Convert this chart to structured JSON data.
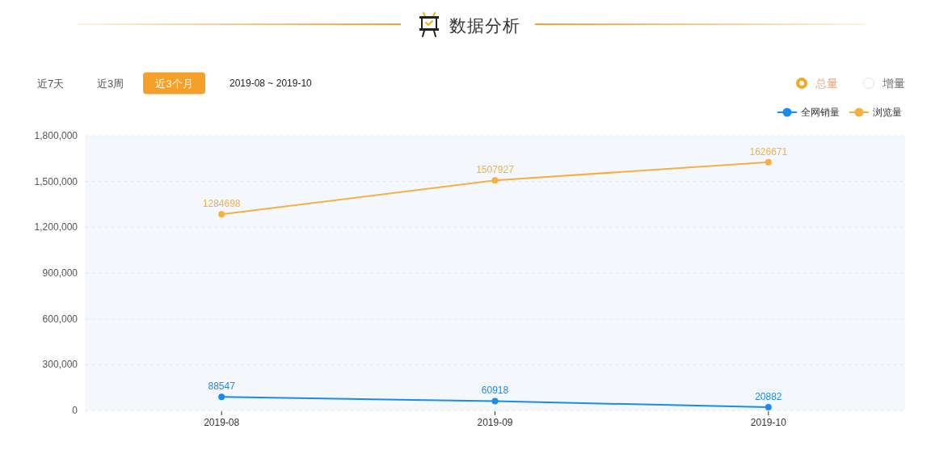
{
  "chart_data": {
    "type": "line",
    "title": "数据分析",
    "annotations": [
      "近7天",
      "近3周",
      "近3个月",
      "2019-08 ~ 2019-10",
      "总量",
      "增量"
    ],
    "categories": [
      "2019-08",
      "2019-09",
      "2019-10"
    ],
    "series": [
      {
        "name": "全网销量",
        "color": "#1a8cf0",
        "values": [
          88547,
          60918,
          20882
        ]
      },
      {
        "name": "浏览量",
        "color": "#f5b042",
        "values": [
          1284698,
          1507927,
          1626671
        ]
      }
    ],
    "ylim": [
      0,
      1800000
    ],
    "yticks": [
      0,
      {
        "value": 300000,
        "label": "300,000"
      },
      {
        "value": 600000,
        "label": "600,000"
      },
      {
        "value": 900000,
        "label": "900,000"
      },
      {
        "value": 1200000,
        "label": "1,200,000"
      },
      {
        "value": 1500000,
        "label": "1,500,000"
      },
      {
        "value": 1800000,
        "label": "1,800,000"
      }
    ],
    "grid": "y",
    "legend": "top right",
    "marker": "circle",
    "line_style": "solid",
    "data_labels": true
  }
}
